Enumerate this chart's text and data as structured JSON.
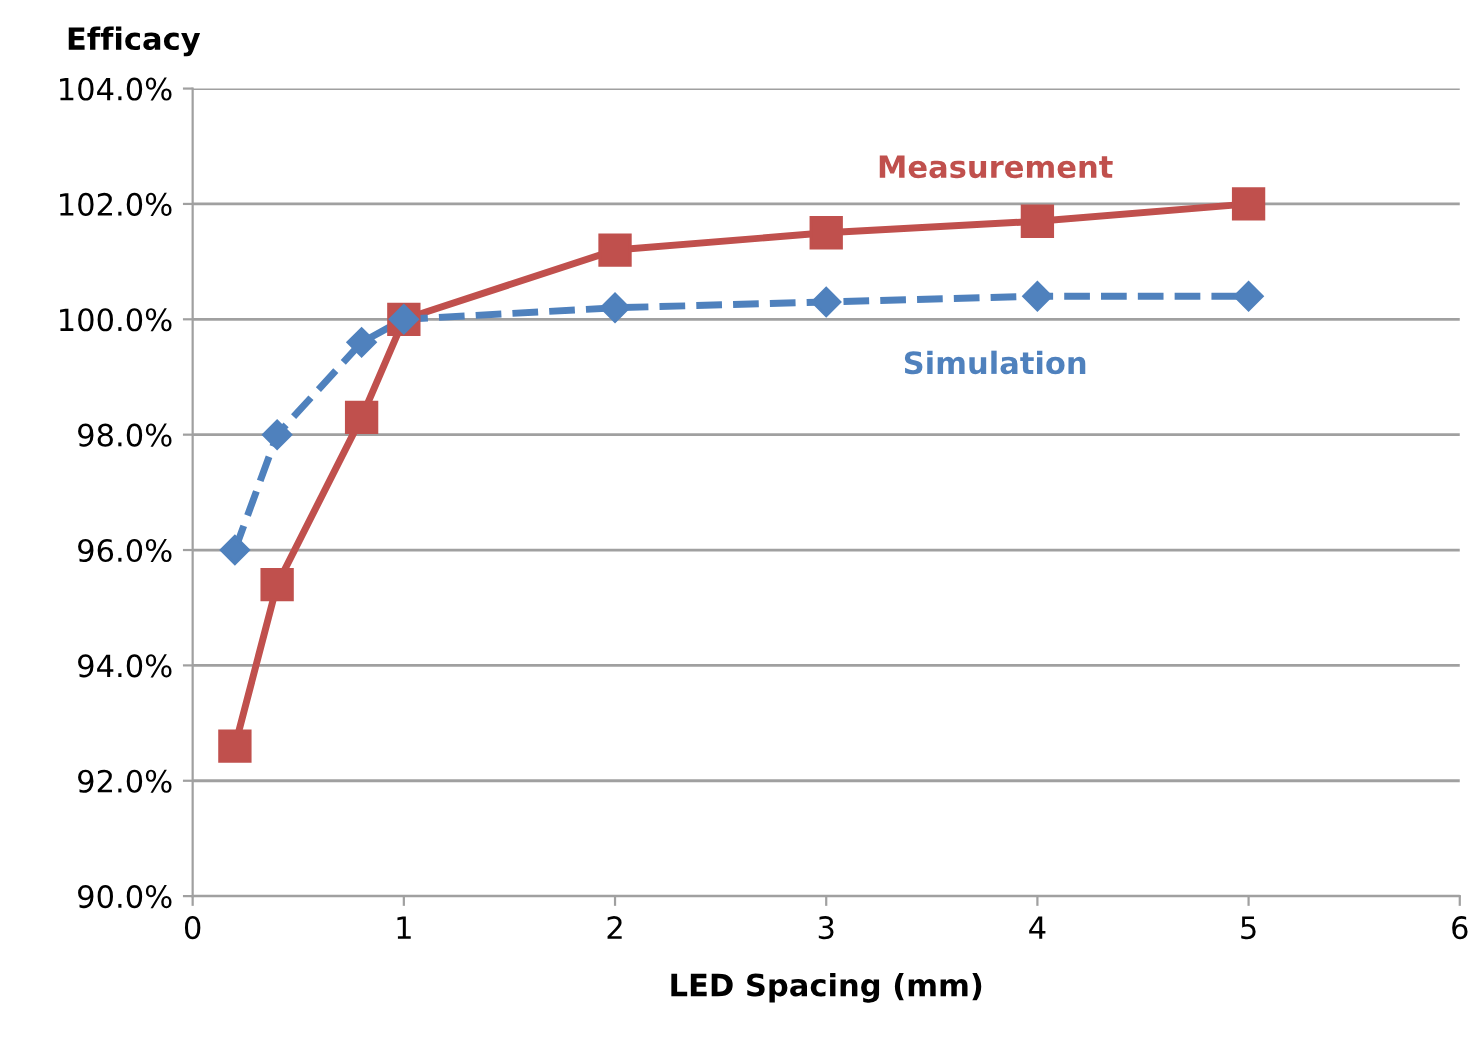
{
  "chart_data": {
    "type": "line",
    "ylabel": "Efficacy",
    "xlabel": "LED Spacing (mm)",
    "xlim": [
      0,
      6
    ],
    "xticks": [
      0,
      1,
      2,
      3,
      4,
      5,
      6
    ],
    "ylim": [
      90,
      104
    ],
    "yticks": [
      {
        "value": 90,
        "label": "90.0%"
      },
      {
        "value": 92,
        "label": "92.0%"
      },
      {
        "value": 94,
        "label": "94.0%"
      },
      {
        "value": 96,
        "label": "96.0%"
      },
      {
        "value": 98,
        "label": "98.0%"
      },
      {
        "value": 100,
        "label": "100.0%"
      },
      {
        "value": 102,
        "label": "102.0%"
      },
      {
        "value": 104,
        "label": "104.0%"
      }
    ],
    "grid": "y",
    "legend": false,
    "series": [
      {
        "name": "Measurement",
        "color": "#c0504d",
        "marker": "square",
        "line_style": "solid",
        "x": [
          0.2,
          0.4,
          0.8,
          1,
          2,
          3,
          4,
          5
        ],
        "values": [
          92.6,
          95.4,
          98.3,
          100.0,
          101.2,
          101.5,
          101.7,
          102.0
        ]
      },
      {
        "name": "Simulation",
        "color": "#4f81bd",
        "marker": "diamond",
        "line_style": "dashed",
        "x": [
          0.2,
          0.4,
          0.8,
          1,
          2,
          3,
          4,
          5
        ],
        "values": [
          96.0,
          98.0,
          99.6,
          100.0,
          100.2,
          100.3,
          100.4,
          100.4
        ]
      }
    ]
  }
}
